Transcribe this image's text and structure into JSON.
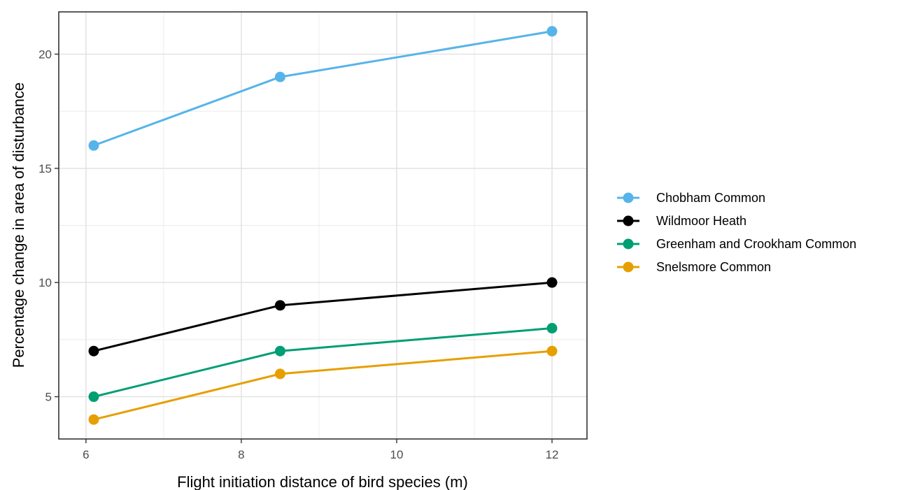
{
  "chart_data": {
    "type": "line",
    "xlabel": "Flight initiation distance of bird species (m)",
    "ylabel": "Percentage change in area of disturbance",
    "x": [
      6.1,
      8.5,
      12
    ],
    "xlim": [
      5.65,
      12.45
    ],
    "ylim": [
      3.15,
      21.85
    ],
    "xticks": [
      6,
      8,
      10,
      12
    ],
    "yticks": [
      5,
      10,
      15,
      20
    ],
    "grid": true,
    "legend_position": "right",
    "series": [
      {
        "name": "Chobham Common",
        "color": "#56B4E9",
        "values": [
          16,
          19,
          21
        ]
      },
      {
        "name": "Wildmoor Heath",
        "color": "#000000",
        "values": [
          7,
          9,
          10
        ]
      },
      {
        "name": "Greenham and Crookham Common",
        "color": "#009E73",
        "values": [
          5,
          7,
          8
        ]
      },
      {
        "name": "Snelsmore Common",
        "color": "#E69F00",
        "values": [
          4,
          6,
          7
        ]
      }
    ]
  }
}
